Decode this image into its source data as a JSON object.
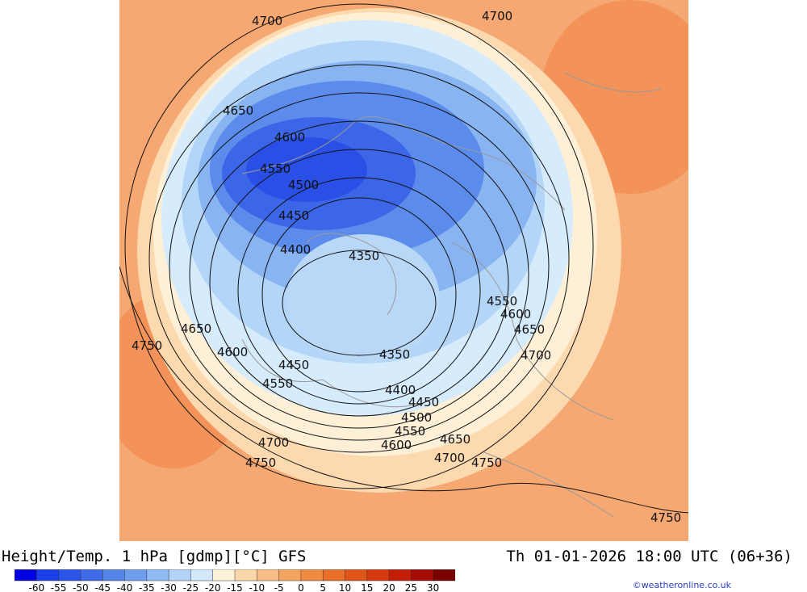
{
  "header": {
    "title": "Height/Temp. 1 hPa [gdmp][°C] GFS",
    "valid_time": "Th 01-01-2026 18:00 UTC (06+36)"
  },
  "credit": "©weatheronline.co.uk",
  "legend": {
    "ticks": [
      "-60",
      "-55",
      "-50",
      "-45",
      "-40",
      "-35",
      "-30",
      "-25",
      "-20",
      "-15",
      "-10",
      "-5",
      "0",
      "5",
      "10",
      "15",
      "20",
      "25",
      "30"
    ],
    "colors": [
      "#0000e0",
      "#1a3fe6",
      "#2a55e8",
      "#3f6be8",
      "#5585ea",
      "#6f9eee",
      "#8fb9f2",
      "#b2d3f6",
      "#d3e8fa",
      "#fff2d6",
      "#fcd7ac",
      "#f9bd85",
      "#f5a460",
      "#f08a43",
      "#e96f2b",
      "#e05518",
      "#d63a0c",
      "#c41f06",
      "#a50a03",
      "#7a0000"
    ]
  },
  "contour_labels": [
    "4700",
    "4700",
    "4650",
    "4600",
    "4550",
    "4500",
    "4450",
    "4400",
    "4350",
    "4750",
    "4650",
    "4600",
    "4450",
    "4550",
    "4350",
    "4550",
    "4600",
    "4650",
    "4700",
    "4400",
    "4450",
    "4500",
    "4550",
    "4600",
    "4650",
    "4700",
    "4700",
    "4750",
    "4750",
    "4750"
  ]
}
